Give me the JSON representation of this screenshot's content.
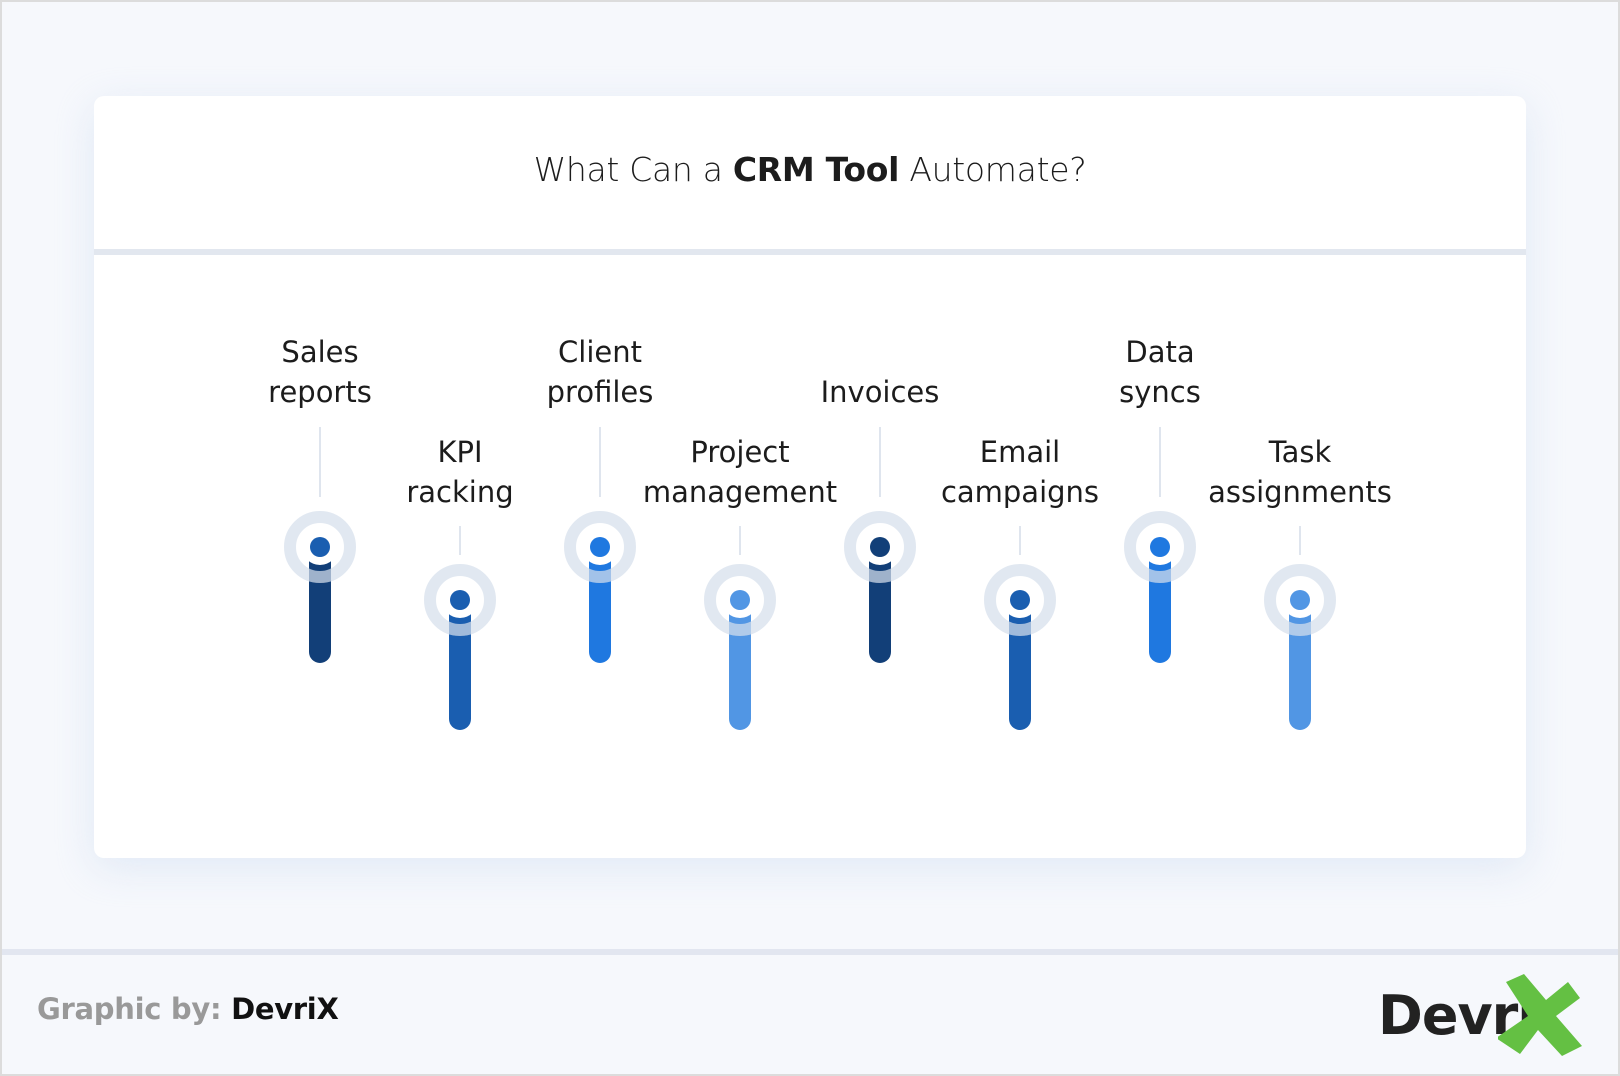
{
  "title": {
    "prefix": "What Can a ",
    "bold": "CRM Tool",
    "suffix": " Automate?"
  },
  "colors": {
    "dark": "#123f78",
    "medium": "#1a5eb0",
    "bright": "#1f78e0",
    "light": "#5196e4",
    "halo": "#e3e9f1",
    "connector": "#dfe5ee",
    "logo_green": "#64c043"
  },
  "items": [
    {
      "line1": "Sales",
      "line2": "reports",
      "row": "upper",
      "bar_color": "dark",
      "dot_color": "medium"
    },
    {
      "line1": "KPI",
      "line2": "racking",
      "row": "lower",
      "bar_color": "medium",
      "dot_color": "medium"
    },
    {
      "line1": "Client",
      "line2": "profiles",
      "row": "upper",
      "bar_color": "bright",
      "dot_color": "bright"
    },
    {
      "line1": "Project",
      "line2": "management",
      "row": "lower",
      "bar_color": "light",
      "dot_color": "light"
    },
    {
      "line1": "",
      "line2": "Invoices",
      "row": "upper",
      "bar_color": "dark",
      "dot_color": "dark"
    },
    {
      "line1": "Email",
      "line2": "campaigns",
      "row": "lower",
      "bar_color": "medium",
      "dot_color": "medium"
    },
    {
      "line1": "Data",
      "line2": "syncs",
      "row": "upper",
      "bar_color": "bright",
      "dot_color": "bright"
    },
    {
      "line1": "Task",
      "line2": "assignments",
      "row": "lower",
      "bar_color": "light",
      "dot_color": "light"
    }
  ],
  "footer": {
    "credit_label": "Graphic by:",
    "credit_brand": "DevriX",
    "logo_text": "Devri",
    "logo_mark": "X"
  }
}
